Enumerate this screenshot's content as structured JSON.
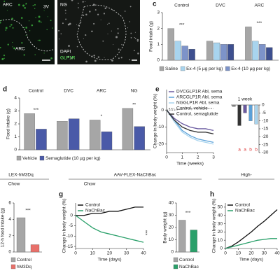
{
  "images": [
    {
      "title": "ARC",
      "labels": [
        "3V",
        "ARC"
      ]
    },
    {
      "title": "NG",
      "labels": [
        "DAPI",
        "GLP1R"
      ]
    }
  ],
  "chart_data": [
    {
      "type": "bar",
      "panel": "c",
      "ylabel": "Food intake (g)",
      "categories": [
        "Control",
        "DVC",
        "ARC"
      ],
      "series": [
        {
          "name": "Saline",
          "color": "#a6a6a6",
          "values": [
            2.0,
            1.2,
            2.1
          ]
        },
        {
          "name": "Ex-4 (5 µg per kg)",
          "color": "#a8d4ee",
          "values": [
            1.2,
            1.1,
            1.2
          ]
        },
        {
          "name": "Ex-4 (10 µg per kg)",
          "color": "#7d93c9",
          "values": [
            0.9,
            1.0,
            1.0
          ]
        },
        {
          "color": "#3d4f8f",
          "values": [
            0.7,
            1.0,
            0.8
          ]
        }
      ],
      "ylim": [
        0,
        3
      ],
      "yticks": [
        0,
        1,
        2,
        3
      ],
      "significance": [
        "***",
        null,
        "***"
      ]
    },
    {
      "type": "bar",
      "panel": "d",
      "ylabel": "Food intake (g)",
      "categories": [
        "Control",
        "DVC",
        "ARC",
        "NG"
      ],
      "series": [
        {
          "name": "Vehicle",
          "color": "#a6a6a6",
          "values": [
            2.8,
            2.2,
            2.3,
            3.2
          ]
        },
        {
          "name": "Semaglutide (10 µg per kg)",
          "color": "#4a5aa8",
          "values": [
            1.6,
            2.4,
            1.4,
            1.8
          ]
        }
      ],
      "ylim": [
        0,
        4
      ],
      "yticks": [
        0,
        1,
        2,
        3,
        4
      ],
      "significance": [
        "***",
        null,
        "*",
        "**"
      ]
    },
    {
      "type": "line",
      "panel": "e",
      "xlabel": "Time (weeks)",
      "ylabel": "Change in body weight (%)",
      "x": [
        0,
        0.5,
        1,
        1.5,
        2,
        2.5,
        3
      ],
      "xlim": [
        0,
        3
      ],
      "xticks": [
        0,
        1,
        2,
        3
      ],
      "ylim": [
        -25,
        12
      ],
      "yticks": [
        0,
        -10,
        -20
      ],
      "legend": "upper left",
      "series": [
        {
          "name": "DVCGLP1R Abl, sema",
          "color": "#6a5aa0",
          "values": [
            0,
            -5,
            -8,
            -10,
            -11,
            -11,
            -12
          ]
        },
        {
          "name": "ARCGLP1R Abl, sema",
          "color": "#5aa0d8",
          "values": [
            0,
            -6,
            -12,
            -15,
            -17,
            -18,
            -19
          ]
        },
        {
          "name": "NGGLP1R Abl, sema",
          "color": "#a8d4ee",
          "values": [
            0,
            -7,
            -13,
            -16,
            -18,
            -19,
            -20
          ]
        },
        {
          "name": "Control, vehicle",
          "color": "#888888",
          "dashed": true,
          "values": [
            0,
            0,
            0.5,
            1,
            1,
            1,
            1
          ]
        },
        {
          "name": "Control, semaglutide",
          "color": "#333333",
          "values": [
            0,
            -6,
            -10,
            -12,
            -13,
            -13,
            -14
          ]
        }
      ]
    },
    {
      "type": "bar",
      "title": "1 week",
      "values": [
        -1,
        -13,
        -5,
        -10,
        -12
      ],
      "colors": [
        "#888888",
        "#333333",
        "#6a5aa0",
        "#5aa0d8",
        "#a8d4ee"
      ],
      "letters": [
        null,
        "a",
        "a",
        "b",
        "b"
      ],
      "ylim": [
        -30,
        0
      ],
      "yticks": [
        0,
        -5,
        -10,
        -15,
        -20,
        -25,
        -30
      ],
      "yaxis": "right"
    },
    {
      "type": "bar",
      "header": "LEX-hM3Dq",
      "subheader": "Chow",
      "ylabel": "12-h food intake (g)",
      "categories": [
        "Control",
        "hM3Dq"
      ],
      "values": [
        4.2,
        0.9
      ],
      "colors": [
        "#a6a6a6",
        "#e8706a"
      ],
      "ylim": [
        0,
        6
      ],
      "yticks": [
        0,
        2,
        4,
        6
      ],
      "significance": "***"
    },
    {
      "type": "line",
      "panel": "g",
      "header": "AAV-FLEX-NaChBac",
      "subheader": "Chow",
      "xlabel": "Time (days)",
      "ylabel": "Change in body weight (%)",
      "x": [
        0,
        5,
        10,
        15,
        20,
        25,
        30,
        35,
        40
      ],
      "xlim": [
        0,
        40
      ],
      "xticks": [
        0,
        10,
        20,
        30,
        40
      ],
      "ylim": [
        -16,
        6
      ],
      "yticks": [
        0,
        -5,
        -10,
        -15
      ],
      "legend": "upper left",
      "significance": "***",
      "series": [
        {
          "name": "Control",
          "color": "#111111",
          "values": [
            0,
            0,
            1,
            1,
            2,
            2,
            3,
            4,
            4
          ]
        },
        {
          "name": "NaChBac",
          "color": "#2aa06a",
          "values": [
            0,
            -3,
            -6,
            -8,
            -9,
            -10,
            -11,
            -12,
            -13
          ]
        }
      ]
    },
    {
      "type": "bar",
      "ylabel": "Body weight (g)",
      "categories": [
        "Control",
        "NaChBac"
      ],
      "values": [
        26,
        18
      ],
      "colors": [
        "#a6a6a6",
        "#2aa06a"
      ],
      "ylim": [
        0,
        40
      ],
      "yticks": [
        0,
        10,
        20,
        30,
        40
      ],
      "significance": "***"
    },
    {
      "type": "line",
      "panel": "h",
      "header": "High-",
      "xlabel": "Time (days)",
      "ylabel": "Change in body weight (%)",
      "x": [
        0,
        5,
        10,
        15,
        20,
        25,
        30,
        35,
        40
      ],
      "xlim": [
        0,
        40
      ],
      "xticks": [
        0,
        10,
        20,
        30,
        40
      ],
      "ylim": [
        0,
        55
      ],
      "yticks": [
        0,
        10,
        20,
        30,
        40,
        50
      ],
      "legend": "upper left",
      "series": [
        {
          "name": "Control",
          "color": "#111111",
          "values": [
            0,
            3,
            8,
            14,
            20,
            27,
            33,
            40,
            47
          ]
        },
        {
          "name": "NaChBac",
          "color": "#2aa06a",
          "values": [
            0,
            2,
            4,
            6,
            8,
            10,
            11,
            12,
            12
          ]
        }
      ]
    }
  ]
}
